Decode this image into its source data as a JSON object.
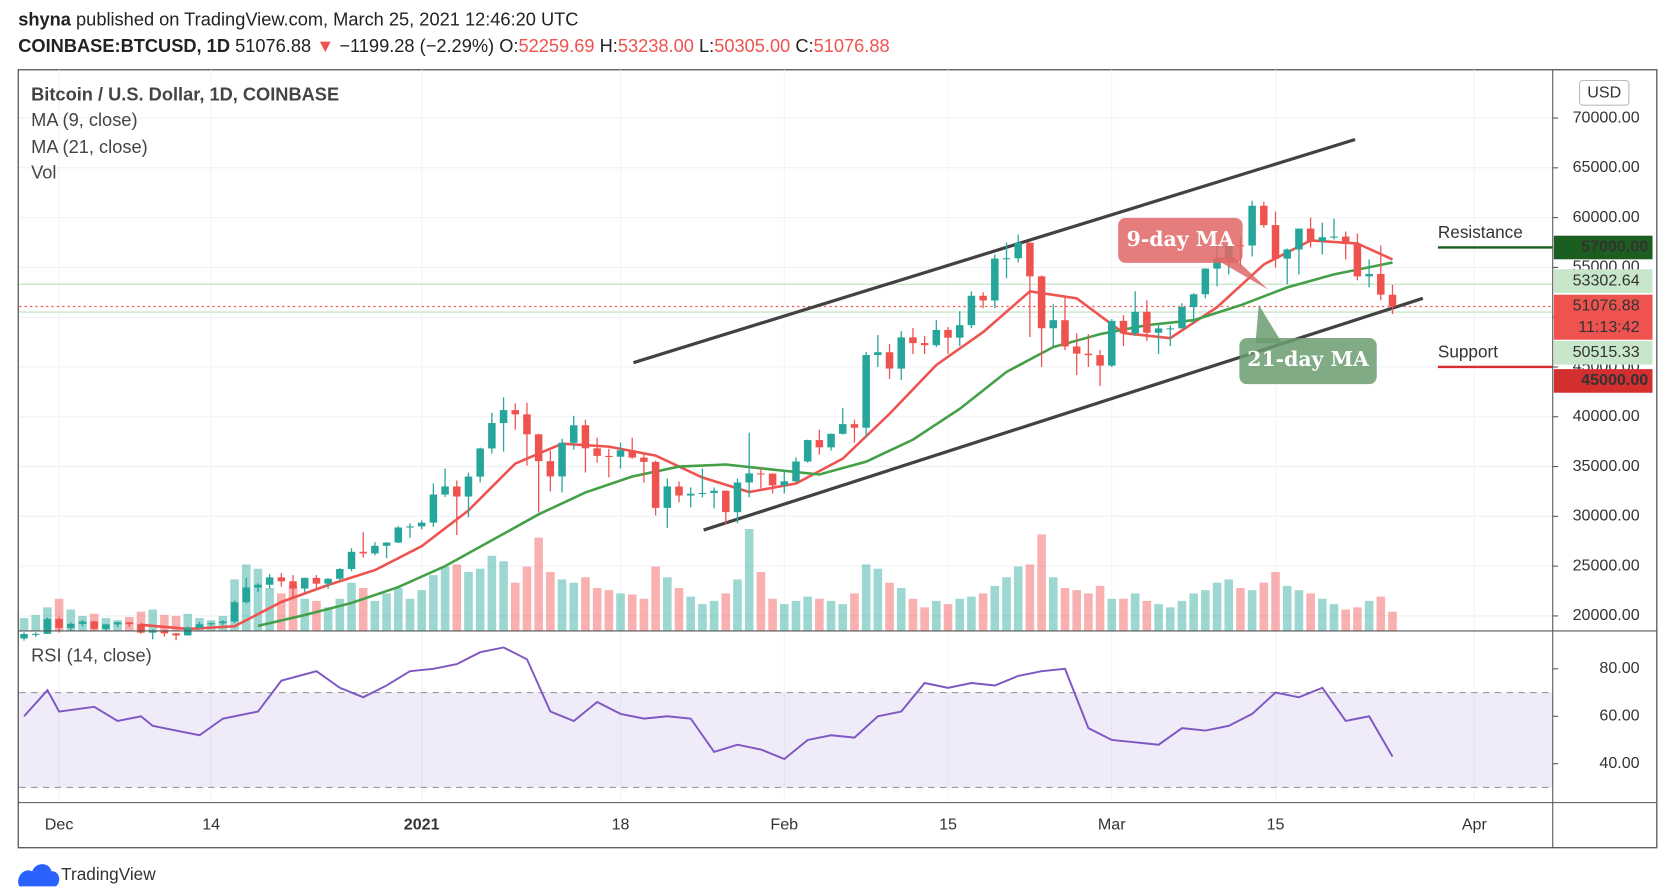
{
  "header": {
    "author": "shyna",
    "published": "published on TradingView.com, March 25, 2021 12:46:20 UTC",
    "symbol": "COINBASE:BTCUSD, 1D",
    "last": "51076.88",
    "arrow": "▼",
    "change": "−1199.28 (−2.29%)",
    "o_label": "O:",
    "open": "52259.69",
    "h_label": "H:",
    "high": "53238.00",
    "l_label": "L:",
    "low": "50305.00",
    "c_label": "C:",
    "close": "51076.88"
  },
  "chart_data": {
    "type": "candlestick",
    "title": "Bitcoin / U.S. Dollar, 1D, COINBASE",
    "currency": "USD",
    "up_color": "#26a69a",
    "down_color": "#ef5350",
    "x": [
      0,
      1,
      2,
      3,
      4,
      5,
      6,
      7,
      8,
      9,
      10,
      11,
      12,
      13,
      14,
      15,
      16,
      17,
      18,
      19,
      20,
      21,
      22,
      23,
      24,
      25,
      26,
      27,
      28,
      29,
      30,
      31,
      32,
      33,
      34,
      35,
      36,
      37,
      38,
      39,
      40,
      41,
      42,
      43,
      44,
      45,
      46,
      47,
      48,
      49,
      50,
      51,
      52,
      53,
      54,
      55,
      56,
      57,
      58,
      59,
      60,
      61,
      62,
      63,
      64,
      65,
      66,
      67,
      68,
      69,
      70,
      71,
      72,
      73,
      74,
      75,
      76,
      77,
      78,
      79,
      80,
      81,
      82,
      83,
      84,
      85,
      86,
      87,
      88,
      89,
      90,
      91,
      92,
      93,
      94,
      95,
      96,
      97,
      98,
      99,
      100,
      101,
      102,
      103,
      104,
      105,
      106,
      107,
      108,
      109,
      110,
      111,
      112,
      113,
      114,
      115,
      116,
      117
    ],
    "candles": [
      [
        17730,
        18350,
        17520,
        18180
      ],
      [
        18180,
        18350,
        17900,
        18200
      ],
      [
        18200,
        19860,
        18180,
        19700
      ],
      [
        19700,
        19920,
        18330,
        18800
      ],
      [
        18800,
        19340,
        18550,
        19200
      ],
      [
        19200,
        19600,
        18930,
        19440
      ],
      [
        19440,
        19530,
        18600,
        18700
      ],
      [
        18700,
        19170,
        18500,
        19150
      ],
      [
        19150,
        19420,
        18870,
        19360
      ],
      [
        19360,
        19400,
        18910,
        19170
      ],
      [
        19170,
        19290,
        18200,
        18320
      ],
      [
        18320,
        18650,
        17650,
        18550
      ],
      [
        18550,
        18630,
        17920,
        18250
      ],
      [
        18250,
        18280,
        17570,
        18040
      ],
      [
        18040,
        18950,
        18020,
        18800
      ],
      [
        18800,
        19400,
        18730,
        19170
      ],
      [
        19170,
        19350,
        19000,
        19270
      ],
      [
        19270,
        19570,
        19050,
        19440
      ],
      [
        19440,
        21560,
        19300,
        21380
      ],
      [
        21380,
        23800,
        21240,
        22850
      ],
      [
        22850,
        23280,
        22380,
        23130
      ],
      [
        23130,
        24200,
        22770,
        23870
      ],
      [
        23870,
        24300,
        22950,
        23480
      ],
      [
        23480,
        24100,
        21900,
        22750
      ],
      [
        22750,
        23840,
        22370,
        23820
      ],
      [
        23820,
        24100,
        22700,
        23240
      ],
      [
        23240,
        23800,
        22730,
        23730
      ],
      [
        23730,
        24800,
        23450,
        24710
      ],
      [
        24710,
        26800,
        24500,
        26440
      ],
      [
        26440,
        28400,
        25850,
        26280
      ],
      [
        26280,
        27400,
        26100,
        27040
      ],
      [
        27040,
        27400,
        25800,
        27370
      ],
      [
        27370,
        29000,
        27320,
        28880
      ],
      [
        28880,
        29300,
        27850,
        28990
      ],
      [
        28990,
        29600,
        28700,
        29370
      ],
      [
        29370,
        33300,
        28950,
        32190
      ],
      [
        32190,
        34800,
        31950,
        33000
      ],
      [
        33000,
        33600,
        28130,
        31990
      ],
      [
        31990,
        34400,
        29900,
        33990
      ],
      [
        33990,
        36900,
        33400,
        36820
      ],
      [
        36820,
        40400,
        36300,
        39370
      ],
      [
        39370,
        41950,
        36500,
        40670
      ],
      [
        40670,
        41350,
        38700,
        40240
      ],
      [
        40240,
        41400,
        35100,
        38240
      ],
      [
        38240,
        38300,
        30400,
        35540
      ],
      [
        35540,
        36600,
        32500,
        34010
      ],
      [
        34010,
        37800,
        32400,
        37390
      ],
      [
        37390,
        40100,
        36700,
        39150
      ],
      [
        39150,
        39700,
        34400,
        36830
      ],
      [
        36830,
        37900,
        35400,
        36070
      ],
      [
        36070,
        36800,
        33900,
        35990
      ],
      [
        35990,
        37400,
        34800,
        36630
      ],
      [
        36630,
        37900,
        35800,
        35900
      ],
      [
        35900,
        36400,
        33400,
        35470
      ],
      [
        35470,
        35600,
        30100,
        30850
      ],
      [
        30850,
        33800,
        28850,
        33000
      ],
      [
        33000,
        33500,
        31400,
        32090
      ],
      [
        32090,
        32900,
        30900,
        32270
      ],
      [
        32270,
        34800,
        31900,
        32350
      ],
      [
        32350,
        32900,
        30800,
        32570
      ],
      [
        32570,
        32600,
        29200,
        30420
      ],
      [
        30420,
        33800,
        29300,
        33400
      ],
      [
        33400,
        38400,
        31900,
        34310
      ],
      [
        34310,
        34900,
        32800,
        34300
      ],
      [
        34300,
        34300,
        32300,
        33110
      ],
      [
        33110,
        34700,
        32300,
        33520
      ],
      [
        33520,
        35900,
        33400,
        35510
      ],
      [
        35510,
        37700,
        35400,
        37660
      ],
      [
        37660,
        38700,
        36200,
        36930
      ],
      [
        36930,
        38300,
        36600,
        38290
      ],
      [
        38290,
        40900,
        38200,
        39260
      ],
      [
        39260,
        39700,
        37400,
        38900
      ],
      [
        38900,
        46500,
        37900,
        46200
      ],
      [
        46200,
        48200,
        45000,
        46480
      ],
      [
        46480,
        47300,
        43800,
        44840
      ],
      [
        44840,
        48600,
        43700,
        47970
      ],
      [
        47970,
        48900,
        46300,
        47400
      ],
      [
        47400,
        48100,
        46300,
        47190
      ],
      [
        47190,
        49700,
        47000,
        48720
      ],
      [
        48720,
        49000,
        46300,
        47940
      ],
      [
        47940,
        50600,
        47100,
        49200
      ],
      [
        49200,
        52600,
        48900,
        52150
      ],
      [
        52150,
        52500,
        50900,
        51680
      ],
      [
        51680,
        56300,
        50900,
        55890
      ],
      [
        55890,
        57500,
        53900,
        55920
      ],
      [
        55920,
        58300,
        55500,
        57490
      ],
      [
        57490,
        57500,
        48000,
        54100
      ],
      [
        54100,
        54200,
        45000,
        48890
      ],
      [
        48890,
        51300,
        47100,
        49700
      ],
      [
        49700,
        52000,
        46700,
        47060
      ],
      [
        47060,
        48400,
        44200,
        46340
      ],
      [
        46340,
        48300,
        45000,
        46190
      ],
      [
        46190,
        46700,
        43100,
        45140
      ],
      [
        45140,
        49800,
        45000,
        49630
      ],
      [
        49630,
        50200,
        47100,
        48380
      ],
      [
        48380,
        52600,
        48100,
        50540
      ],
      [
        50540,
        51700,
        47600,
        48440
      ],
      [
        48440,
        49400,
        46300,
        48870
      ],
      [
        48870,
        49200,
        47100,
        48880
      ],
      [
        48880,
        51400,
        48900,
        51020
      ],
      [
        51020,
        52400,
        49300,
        52300
      ],
      [
        52300,
        54900,
        51900,
        54880
      ],
      [
        54880,
        57200,
        53100,
        55850
      ],
      [
        55850,
        58100,
        54300,
        57230
      ],
      [
        57230,
        58000,
        55000,
        57200
      ],
      [
        57200,
        61700,
        56100,
        61190
      ],
      [
        61190,
        61600,
        59000,
        59250
      ],
      [
        59250,
        60600,
        55000,
        55880
      ],
      [
        55880,
        56900,
        53300,
        56800
      ],
      [
        56800,
        58900,
        54300,
        58900
      ],
      [
        58900,
        60000,
        57000,
        57650
      ],
      [
        57650,
        59500,
        56300,
        58030
      ],
      [
        58030,
        59900,
        57800,
        58100
      ],
      [
        58100,
        58600,
        55800,
        57350
      ],
      [
        57350,
        58400,
        53700,
        54100
      ],
      [
        54100,
        55800,
        53000,
        54340
      ],
      [
        54340,
        57200,
        51700,
        52260
      ],
      [
        52259.69,
        53238,
        50305,
        51076.88
      ]
    ],
    "volume": {
      "name": "Vol",
      "values": [
        12,
        15,
        22,
        30,
        20,
        14,
        16,
        12,
        10,
        13,
        18,
        20,
        15,
        14,
        16,
        12,
        10,
        14,
        48,
        62,
        58,
        40,
        35,
        42,
        30,
        28,
        22,
        30,
        45,
        40,
        28,
        35,
        40,
        30,
        38,
        52,
        60,
        62,
        55,
        58,
        70,
        65,
        45,
        60,
        87,
        55,
        48,
        45,
        50,
        40,
        38,
        35,
        34,
        30,
        60,
        50,
        40,
        32,
        25,
        28,
        35,
        48,
        95,
        55,
        30,
        25,
        28,
        32,
        30,
        28,
        25,
        35,
        62,
        58,
        45,
        40,
        30,
        22,
        28,
        25,
        30,
        32,
        35,
        42,
        50,
        60,
        62,
        90,
        50,
        40,
        38,
        35,
        42,
        30,
        30,
        35,
        28,
        25,
        22,
        28,
        35,
        38,
        45,
        48,
        40,
        38,
        45,
        55,
        42,
        38,
        35,
        30,
        25,
        20,
        22,
        28,
        32,
        18
      ]
    },
    "ma": [
      {
        "name": "MA (9, close)",
        "color": "#ef5350",
        "x": [
          10,
          14,
          18,
          22,
          26,
          30,
          34,
          38,
          42,
          46,
          50,
          54,
          58,
          62,
          66,
          70,
          74,
          78,
          82,
          86,
          90,
          94,
          98,
          102,
          106,
          110,
          114,
          117
        ],
        "values": [
          19100,
          18700,
          18960,
          21400,
          23100,
          24600,
          27000,
          30600,
          35300,
          37300,
          37000,
          36100,
          33900,
          32450,
          33300,
          35800,
          40300,
          45200,
          48500,
          52600,
          51900,
          48400,
          47900,
          51000,
          55300,
          57700,
          57400,
          55800
        ]
      },
      {
        "name": "MA (21, close)",
        "color": "#43a047",
        "x": [
          20,
          24,
          28,
          32,
          36,
          40,
          44,
          48,
          52,
          56,
          60,
          64,
          68,
          72,
          76,
          80,
          84,
          88,
          92,
          96,
          100,
          104,
          108,
          112,
          117
        ],
        "values": [
          19000,
          20100,
          21300,
          22900,
          25000,
          27600,
          30200,
          32400,
          34000,
          35000,
          35200,
          34700,
          34200,
          35500,
          37700,
          40800,
          44500,
          47000,
          48300,
          49200,
          49700,
          51200,
          53000,
          54300,
          55500
        ]
      }
    ],
    "trendlines": {
      "color": "#424242",
      "lines": [
        {
          "x": [
            52.1,
            113.8
          ],
          "values": [
            45430,
            67850
          ]
        },
        {
          "x": [
            58.1,
            119.6
          ],
          "values": [
            28620,
            51900
          ]
        }
      ]
    },
    "annotations": [
      {
        "text": "9-day MA",
        "color": "#e06666"
      },
      {
        "text": "21-day MA",
        "color": "#6a9c6e"
      }
    ],
    "levels": [
      {
        "name": "Resistance",
        "value": 57000,
        "label": "57000.00",
        "color": "#1b5e20",
        "text_color": "#c62828"
      },
      {
        "name": "Support",
        "value": 45000,
        "label": "45000.00",
        "color": "#d32f2f",
        "text_color": "#2e7d32"
      }
    ],
    "price_lines": [
      {
        "value": 53302.64,
        "label": "53302.64",
        "color": "#c8e6c9"
      },
      {
        "value": 51076.88,
        "label": "51076.88",
        "color": "#ef5350",
        "countdown": "11:13:42"
      },
      {
        "value": 50515.33,
        "label": "50515.33",
        "color": "#c8e6c9"
      }
    ],
    "xlim": [
      -0.4,
      130.7
    ],
    "xticks": [
      {
        "value": 3,
        "label": "Dec"
      },
      {
        "value": 16,
        "label": "14"
      },
      {
        "value": 34,
        "label": "2021"
      },
      {
        "value": 51,
        "label": "18"
      },
      {
        "value": 65,
        "label": "Feb"
      },
      {
        "value": 79,
        "label": "15"
      },
      {
        "value": 93,
        "label": "Mar"
      },
      {
        "value": 107,
        "label": "15"
      },
      {
        "value": 124,
        "label": "Apr"
      }
    ],
    "ylim": [
      18490,
      74850
    ],
    "yticks": [
      {
        "value": 20000,
        "label": "20000.00"
      },
      {
        "value": 25000,
        "label": "25000.00"
      },
      {
        "value": 30000,
        "label": "30000.00"
      },
      {
        "value": 35000,
        "label": "35000.00"
      },
      {
        "value": 40000,
        "label": "40000.00"
      },
      {
        "value": 45000,
        "label": "45000.00"
      },
      {
        "value": 50000,
        "label": "50000.00"
      },
      {
        "value": 55000,
        "label": "55000.00"
      },
      {
        "value": 60000,
        "label": "60000.00"
      },
      {
        "value": 65000,
        "label": "65000.00"
      },
      {
        "value": 70000,
        "label": "70000.00"
      }
    ],
    "grid": true,
    "rsi": {
      "name": "RSI (14, close)",
      "color": "#7e57c2",
      "x": [
        0,
        2,
        3,
        6,
        8,
        10,
        11,
        13,
        15,
        17,
        20,
        22,
        25,
        27,
        29,
        31,
        33,
        35,
        37,
        39,
        41,
        43,
        45,
        47,
        49,
        51,
        53,
        55,
        57,
        59,
        61,
        63,
        65,
        67,
        69,
        71,
        73,
        75,
        77,
        79,
        81,
        83,
        85,
        87,
        89,
        91,
        93,
        95,
        97,
        99,
        101,
        103,
        105,
        107,
        109,
        111,
        113,
        115,
        117
      ],
      "values": [
        60,
        71,
        62,
        64,
        58,
        60,
        56,
        54,
        52,
        59,
        62,
        75,
        79,
        72,
        68,
        73,
        79,
        80,
        82,
        87,
        89,
        84,
        62,
        58,
        66,
        61,
        59,
        60,
        59,
        45,
        48,
        46,
        42,
        50,
        52,
        51,
        60,
        62,
        74,
        72,
        74,
        73,
        77,
        79,
        80,
        55,
        50,
        49,
        48,
        55,
        54,
        56,
        61,
        70,
        68,
        72,
        58,
        60,
        43
      ],
      "ylim": [
        23.6,
        95.5
      ],
      "yticks": [
        {
          "value": 40,
          "label": "40.00"
        },
        {
          "value": 60,
          "label": "60.00"
        },
        {
          "value": 80,
          "label": "80.00"
        }
      ],
      "band": [
        30,
        70
      ]
    }
  },
  "footer": {
    "brand": "TradingView"
  }
}
